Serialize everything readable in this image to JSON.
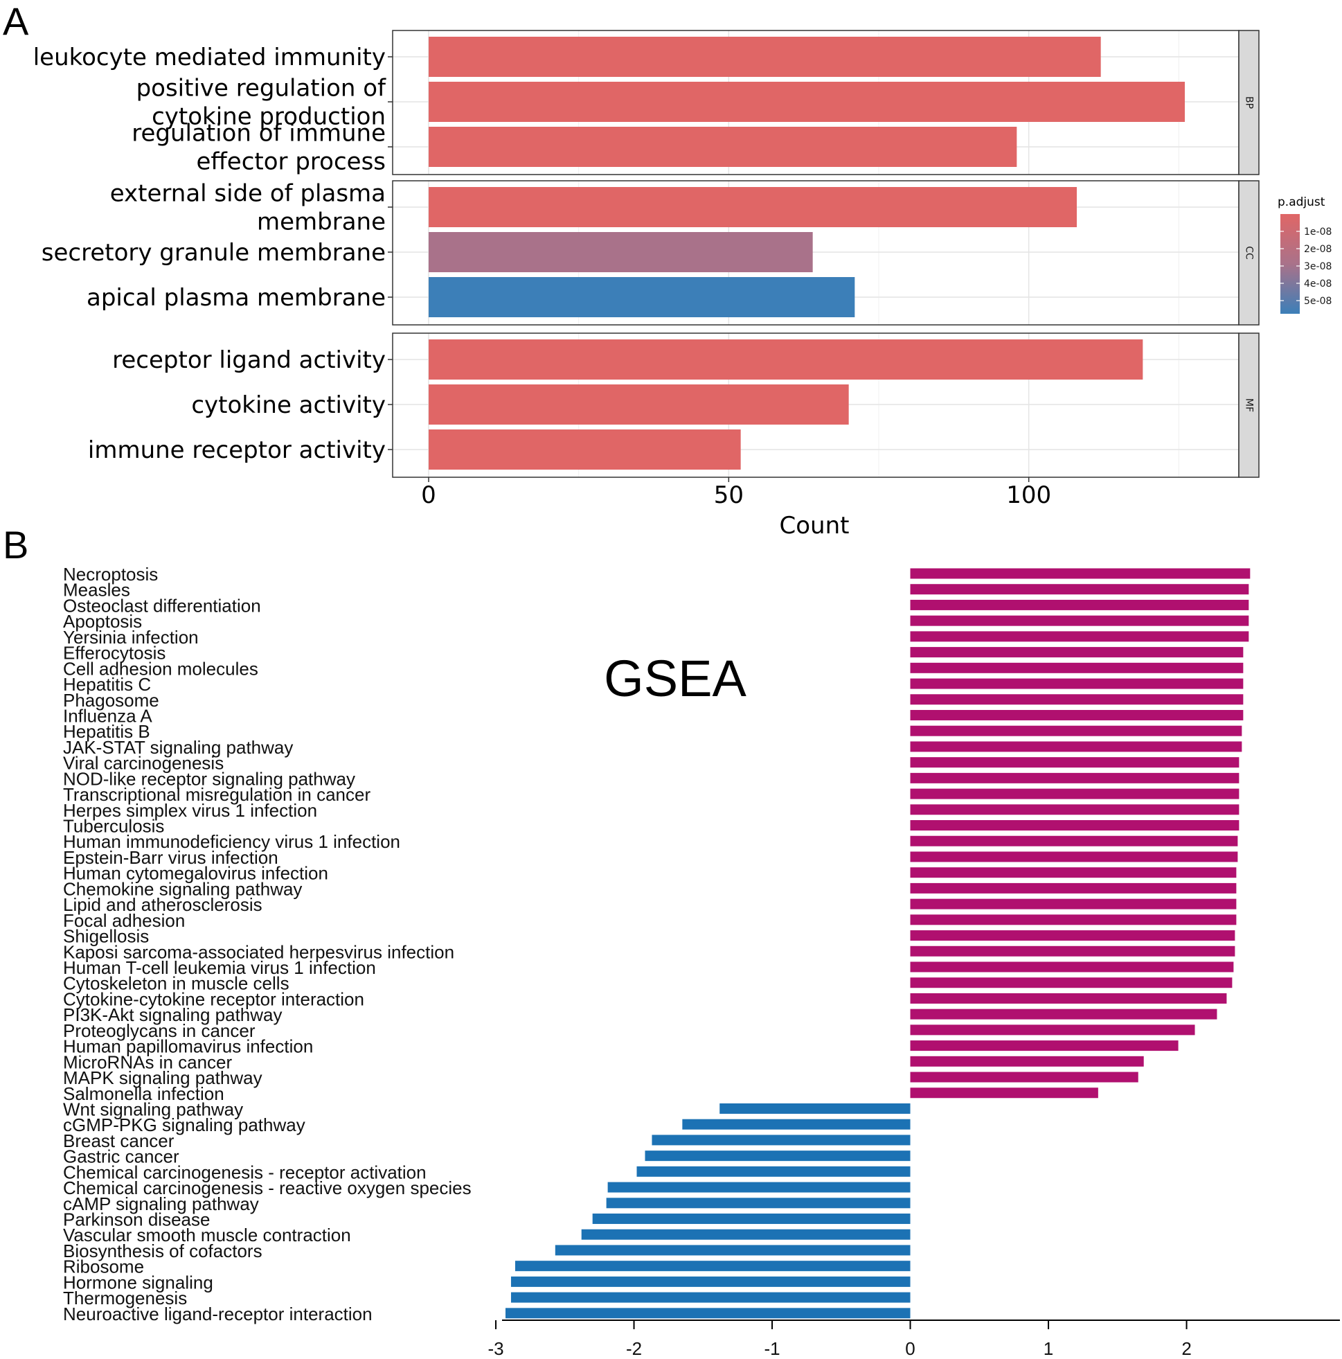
{
  "chart_data": [
    {
      "panel_label": "A",
      "type": "bar",
      "orientation": "horizontal",
      "xlabel": "Count",
      "xlim": [
        -6,
        135
      ],
      "xticks": [
        0,
        50,
        100
      ],
      "legend": {
        "title": "p.adjust",
        "labels": [
          "1e-08",
          "2e-08",
          "3e-08",
          "4e-08",
          "5e-08"
        ],
        "colors": [
          "#e06666",
          "#a9728a",
          "#3c7fb8"
        ],
        "placement": "right"
      },
      "facets": [
        {
          "name": "BP",
          "bars": [
            {
              "label": "leukocyte mediated immunity",
              "lines": [
                "leukocyte mediated immunity"
              ],
              "value": 112,
              "color": "#e06666"
            },
            {
              "label": "positive regulation of cytokine production",
              "lines": [
                "positive regulation of",
                "cytokine production"
              ],
              "value": 126,
              "color": "#e06666"
            },
            {
              "label": "regulation of immune effector process",
              "lines": [
                "regulation of immune",
                "effector process"
              ],
              "value": 98,
              "color": "#e06666"
            }
          ]
        },
        {
          "name": "CC",
          "bars": [
            {
              "label": "external side of plasma membrane",
              "lines": [
                "external side of plasma",
                "membrane"
              ],
              "value": 108,
              "color": "#e06666"
            },
            {
              "label": "secretory granule membrane",
              "lines": [
                "secretory granule membrane"
              ],
              "value": 64,
              "color": "#a9728a"
            },
            {
              "label": "apical plasma membrane",
              "lines": [
                "apical plasma membrane"
              ],
              "value": 71,
              "color": "#3c7fb8"
            }
          ]
        },
        {
          "name": "MF",
          "bars": [
            {
              "label": "receptor ligand activity",
              "lines": [
                "receptor ligand activity"
              ],
              "value": 119,
              "color": "#e06666"
            },
            {
              "label": "cytokine activity",
              "lines": [
                "cytokine activity"
              ],
              "value": 70,
              "color": "#e06666"
            },
            {
              "label": "immune receptor activity",
              "lines": [
                "immune receptor activity"
              ],
              "value": 52,
              "color": "#e06666"
            }
          ]
        }
      ]
    },
    {
      "panel_label": "B",
      "type": "bar",
      "orientation": "horizontal",
      "title": "GSEA",
      "xlim": [
        -2.955,
        3.11
      ],
      "xticks": [
        -3,
        -2,
        -1,
        0,
        1,
        2
      ],
      "xtick_labels": [
        "-3",
        "-2",
        "-1",
        "0",
        "1",
        "2"
      ],
      "positive_color": "#b0106f",
      "negative_color": "#1c72b4",
      "categories": [
        "Necroptosis",
        "Measles",
        "Osteoclast differentiation",
        "Apoptosis",
        "Yersinia infection",
        "Efferocytosis",
        "Cell adhesion molecules",
        "Hepatitis C",
        "Phagosome",
        "Influenza A",
        "Hepatitis B",
        "JAK-STAT signaling pathway",
        "Viral carcinogenesis",
        "NOD-like receptor signaling pathway",
        "Transcriptional misregulation in cancer",
        "Herpes simplex virus 1 infection",
        "Tuberculosis",
        "Human immunodeficiency virus 1 infection",
        "Epstein-Barr virus infection",
        "Human cytomegalovirus infection",
        "Chemokine signaling pathway",
        "Lipid and atherosclerosis",
        "Focal adhesion",
        "Shigellosis",
        "Kaposi sarcoma-associated herpesvirus infection",
        "Human T-cell leukemia virus 1 infection",
        "Cytoskeleton in muscle cells",
        "Cytokine-cytokine receptor interaction",
        "PI3K-Akt signaling pathway",
        "Proteoglycans in cancer",
        "Human papillomavirus infection",
        "MicroRNAs in cancer",
        "MAPK signaling pathway",
        "Salmonella infection",
        "Wnt signaling pathway",
        "cGMP-PKG signaling pathway",
        "Breast cancer",
        "Gastric cancer",
        "Chemical carcinogenesis - receptor activation",
        "Chemical carcinogenesis - reactive oxygen species",
        "cAMP signaling pathway",
        "Parkinson disease",
        "Vascular smooth muscle contraction",
        "Biosynthesis of cofactors",
        "Ribosome",
        "Hormone signaling",
        "Thermogenesis",
        "Neuroactive ligand-receptor interaction"
      ],
      "values": [
        2.46,
        2.45,
        2.45,
        2.45,
        2.45,
        2.41,
        2.41,
        2.41,
        2.41,
        2.41,
        2.4,
        2.4,
        2.38,
        2.38,
        2.38,
        2.38,
        2.38,
        2.37,
        2.37,
        2.36,
        2.36,
        2.36,
        2.36,
        2.35,
        2.35,
        2.34,
        2.33,
        2.29,
        2.22,
        2.06,
        1.94,
        1.69,
        1.65,
        1.36,
        -1.38,
        -1.65,
        -1.87,
        -1.92,
        -1.98,
        -2.19,
        -2.2,
        -2.3,
        -2.38,
        -2.57,
        -2.86,
        -2.89,
        -2.89,
        -2.93
      ]
    }
  ]
}
